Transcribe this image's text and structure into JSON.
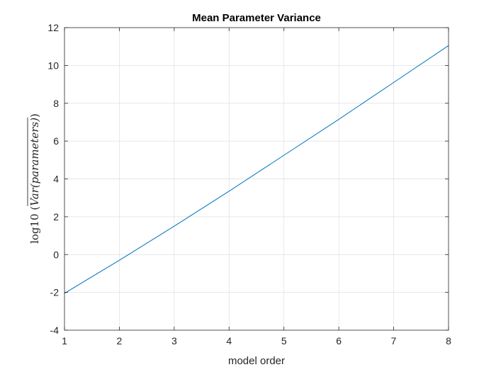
{
  "chart_data": {
    "type": "line",
    "title": "Mean Parameter Variance",
    "xlabel": "model order",
    "ylabel": {
      "prefix": "log10",
      "open_paren": "(",
      "expression": "Var(parameters)",
      "close_paren": ")"
    },
    "xlim": [
      1,
      8
    ],
    "ylim": [
      -4,
      12
    ],
    "xticks": [
      1,
      2,
      3,
      4,
      5,
      6,
      7,
      8
    ],
    "xtick_labels": [
      "1",
      "2",
      "3",
      "4",
      "5",
      "6",
      "7",
      "8"
    ],
    "yticks": [
      -4,
      -2,
      0,
      2,
      4,
      6,
      8,
      10,
      12
    ],
    "ytick_labels": [
      "-4",
      "-2",
      "0",
      "2",
      "4",
      "6",
      "8",
      "10",
      "12"
    ],
    "grid": true,
    "series": [
      {
        "x": [
          1,
          2,
          3,
          4,
          5,
          6,
          7,
          8
        ],
        "y": [
          -2.05,
          -0.3,
          1.5,
          3.35,
          5.25,
          7.15,
          9.1,
          11.05
        ],
        "color": "#0072BD"
      }
    ]
  }
}
